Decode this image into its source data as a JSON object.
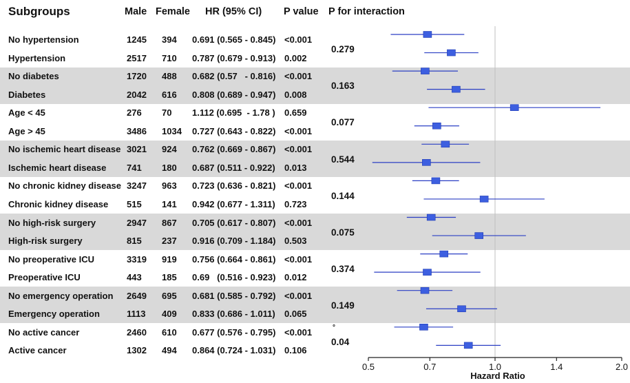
{
  "chart_data": {
    "type": "forest",
    "columns": {
      "subgroup": "Subgroups",
      "male": "Male",
      "female": "Female",
      "hr": "HR (95% CI)",
      "p": "P value",
      "p_interaction": "P for interaction"
    },
    "rows": [
      {
        "subgroup": "No hypertension",
        "male": "1245",
        "female": "394",
        "hr_text": "0.691 (0.565 - 0.845)",
        "p": "<0.001",
        "hr": 0.691,
        "lo": 0.565,
        "hi": 0.845
      },
      {
        "subgroup": "Hypertension",
        "male": "2517",
        "female": "710",
        "hr_text": "0.787 (0.679 - 0.913)",
        "p": "0.002",
        "hr": 0.787,
        "lo": 0.679,
        "hi": 0.913
      },
      {
        "subgroup": "No diabetes",
        "male": "1720",
        "female": "488",
        "hr_text": "0.682 (0.57   - 0.816)",
        "p": "<0.001",
        "hr": 0.682,
        "lo": 0.57,
        "hi": 0.816
      },
      {
        "subgroup": "Diabetes",
        "male": "2042",
        "female": "616",
        "hr_text": "0.808 (0.689 - 0.947)",
        "p": "0.008",
        "hr": 0.808,
        "lo": 0.689,
        "hi": 0.947
      },
      {
        "subgroup": "Age < 45",
        "male": "276",
        "female": "70",
        "hr_text": "1.112 (0.695  - 1.78 )",
        "p": "0.659",
        "hr": 1.112,
        "lo": 0.695,
        "hi": 1.78
      },
      {
        "subgroup": "Age > 45",
        "male": "3486",
        "female": "1034",
        "hr_text": "0.727 (0.643 - 0.822)",
        "p": "<0.001",
        "hr": 0.727,
        "lo": 0.643,
        "hi": 0.822
      },
      {
        "subgroup": "No ischemic heart disease",
        "male": "3021",
        "female": "924",
        "hr_text": "0.762 (0.669 - 0.867)",
        "p": "<0.001",
        "hr": 0.762,
        "lo": 0.669,
        "hi": 0.867
      },
      {
        "subgroup": "Ischemic heart disease",
        "male": "741",
        "female": "180",
        "hr_text": "0.687 (0.511 - 0.922)",
        "p": "0.013",
        "hr": 0.687,
        "lo": 0.511,
        "hi": 0.922
      },
      {
        "subgroup": "No chronic kidney disease",
        "male": "3247",
        "female": "963",
        "hr_text": "0.723 (0.636 - 0.821)",
        "p": "<0.001",
        "hr": 0.723,
        "lo": 0.636,
        "hi": 0.821
      },
      {
        "subgroup": "Chronic kidney disease",
        "male": "515",
        "female": "141",
        "hr_text": "0.942 (0.677 - 1.311)",
        "p": "0.723",
        "hr": 0.942,
        "lo": 0.677,
        "hi": 1.311
      },
      {
        "subgroup": "No high-risk surgery",
        "male": "2947",
        "female": "867",
        "hr_text": "0.705 (0.617 - 0.807)",
        "p": "<0.001",
        "hr": 0.705,
        "lo": 0.617,
        "hi": 0.807
      },
      {
        "subgroup": "High-risk surgery",
        "male": "815",
        "female": "237",
        "hr_text": "0.916 (0.709 - 1.184)",
        "p": "0.503",
        "hr": 0.916,
        "lo": 0.709,
        "hi": 1.184
      },
      {
        "subgroup": "No preoperative ICU",
        "male": "3319",
        "female": "919",
        "hr_text": "0.756 (0.664 - 0.861)",
        "p": "<0.001",
        "hr": 0.756,
        "lo": 0.664,
        "hi": 0.861
      },
      {
        "subgroup": "Preoperative ICU",
        "male": "443",
        "female": "185",
        "hr_text": "0.69   (0.516 - 0.923)",
        "p": "0.012",
        "hr": 0.69,
        "lo": 0.516,
        "hi": 0.923
      },
      {
        "subgroup": "No emergency operation",
        "male": "2649",
        "female": "695",
        "hr_text": "0.681 (0.585 - 0.792)",
        "p": "<0.001",
        "hr": 0.681,
        "lo": 0.585,
        "hi": 0.792
      },
      {
        "subgroup": "Emergency operation",
        "male": "1113",
        "female": "409",
        "hr_text": "0.833 (0.686 - 1.011)",
        "p": "0.065",
        "hr": 0.833,
        "lo": 0.686,
        "hi": 1.011
      },
      {
        "subgroup": "No active cancer",
        "male": "2460",
        "female": "610",
        "hr_text": "0.677 (0.576 - 0.795)",
        "p": "<0.001",
        "hr": 0.677,
        "lo": 0.576,
        "hi": 0.795
      },
      {
        "subgroup": "Active cancer",
        "male": "1302",
        "female": "494",
        "hr_text": "0.864 (0.724 - 1.031)",
        "p": "0.106",
        "hr": 0.864,
        "lo": 0.724,
        "hi": 1.031
      }
    ],
    "groups": [
      {
        "p_interaction": "0.279",
        "shaded": false
      },
      {
        "p_interaction": "0.163",
        "shaded": true
      },
      {
        "p_interaction": "0.077",
        "shaded": false
      },
      {
        "p_interaction": "0.544",
        "shaded": true
      },
      {
        "p_interaction": "0.144",
        "shaded": false
      },
      {
        "p_interaction": "0.075",
        "shaded": true
      },
      {
        "p_interaction": "0.374",
        "shaded": false
      },
      {
        "p_interaction": "0.149",
        "shaded": true
      },
      {
        "p_interaction": "0.04",
        "shaded": false
      }
    ],
    "x_axis": {
      "label": "Hazard Ratio",
      "scale": "log",
      "ticks": [
        0.5,
        0.7,
        1.0,
        1.4,
        2.0
      ],
      "tick_labels": [
        "0.5",
        "0.7",
        "1.0",
        "1.4",
        "2.0"
      ],
      "range": [
        0.5,
        2.0
      ],
      "reference_line": 1.0
    },
    "footnote_mark": "°",
    "colors": {
      "marker": "#3d5fe0",
      "ci_line": "#2a3ec4",
      "band": "#d9d9d9",
      "reference": "#bfbfbf"
    }
  }
}
